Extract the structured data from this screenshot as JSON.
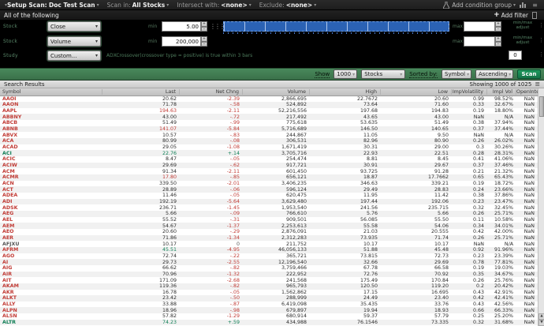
{
  "topbar": {
    "setup_label": "Setup Scan:",
    "setup_value": "Doc Test Scan",
    "scan_in_label": "Scan in:",
    "scan_in_value": "All Stocks",
    "intersect_label": "Intersect with:",
    "intersect_value": "<none>",
    "exclude_label": "Exclude:",
    "exclude_value": "<none>",
    "add_condition_group": "Add condition group",
    "all_of_label": "All of the following",
    "add_filter_plus": "+",
    "add_filter_label": "Add filter"
  },
  "filters": {
    "row1": {
      "tag": "Stock",
      "field": "Close",
      "min_label": "min",
      "min_value": "5.00",
      "max_label": "max",
      "max_value": "",
      "note_line1": "min/max",
      "note_line2": "adjust"
    },
    "row2": {
      "tag": "Stock",
      "field": "Volume",
      "min_label": "min",
      "min_value": "200,000",
      "max_label": "max",
      "max_value": "",
      "note_line1": "min/max",
      "note_line2": "adjust"
    },
    "row3": {
      "tag": "Study",
      "field": "Custom...",
      "description": "ADXCrossover(crossover type = positive) is true within 3 bars",
      "count_value": "0"
    }
  },
  "scan_toolbar": {
    "show_label": "Show",
    "show_value": "1000",
    "type_value": "Stocks",
    "sorted_by_label": "Sorted by:",
    "sort_field": "Symbol",
    "sort_direction": "Ascending",
    "scan_label": "Scan"
  },
  "results": {
    "title": "Search Results",
    "showing": "Showing 1000 of 1025",
    "columns": [
      "Symbol",
      "Last",
      "Net Chng",
      "Volume",
      "High",
      "Low",
      "ImpVolatility",
      "Impl Vol",
      "OpenInterest"
    ],
    "row_fields": [
      "symbol",
      "last",
      "net_chng",
      "volume",
      "high",
      "low",
      "imp_volatility",
      "impl_vol",
      "open_interest",
      "direction",
      "last_color_override"
    ],
    "rows": [
      [
        "AAOI",
        "20.62",
        "-2.39",
        "2,866,695",
        "22.7672",
        "20.60",
        "0.99",
        "98.52%",
        "NaN",
        "dn",
        ""
      ],
      [
        "AAON",
        "71.78",
        "-.58",
        "524,892",
        "73.64",
        "71.60",
        "0.33",
        "32.67%",
        "NaN",
        "dn",
        ""
      ],
      [
        "AAPL",
        "194.63",
        "-2.11",
        "52,216,556",
        "197.68",
        "194.83",
        "0.19",
        "18.80%",
        "NaN",
        "dn",
        "r"
      ],
      [
        "ABBNY",
        "43.00",
        "-.72",
        "217,492",
        "43.65",
        "43.00",
        "NaN",
        "N/A",
        "NaN",
        "dn",
        ""
      ],
      [
        "ABCB",
        "51.49",
        "-.99",
        "775,618",
        "53.635",
        "51.49",
        "0.38",
        "37.94%",
        "NaN",
        "dn",
        ""
      ],
      [
        "ABNB",
        "141.07",
        "-5.84",
        "5,716,689",
        "146.50",
        "140.65",
        "0.37",
        "37.44%",
        "NaN",
        "dn",
        "r"
      ],
      [
        "ABVX",
        "10.57",
        "-.83",
        "244,867",
        "11.05",
        "9.50",
        "NaN",
        "N/A",
        "NaN",
        "dn",
        ""
      ],
      [
        "ACA",
        "80.99",
        "-.08",
        "306,531",
        "82.96",
        "80.90",
        "0.26",
        "26.02%",
        "NaN",
        "dn",
        ""
      ],
      [
        "ACAD",
        "29.05",
        "-1.08",
        "1,671,419",
        "30.31",
        "29.00",
        "0.3",
        "30.26%",
        "NaN",
        "dn",
        ""
      ],
      [
        "ACI",
        "22.76",
        "+.14",
        "3,705,716",
        "22.93",
        "22.51",
        "0.28",
        "28.31%",
        "NaN",
        "up",
        ""
      ],
      [
        "ACIC",
        "8.47",
        "-.05",
        "254,474",
        "8.81",
        "8.45",
        "0.41",
        "41.06%",
        "NaN",
        "dn",
        ""
      ],
      [
        "ACIW",
        "29.69",
        "-.62",
        "917,721",
        "30.91",
        "29.67",
        "0.37",
        "37.46%",
        "NaN",
        "dn",
        ""
      ],
      [
        "ACM",
        "91.34",
        "-2.11",
        "601,450",
        "93.725",
        "91.28",
        "0.21",
        "21.32%",
        "NaN",
        "dn",
        ""
      ],
      [
        "ACMR",
        "17.80",
        "-.85",
        "656,121",
        "18.87",
        "17.7662",
        "0.65",
        "65.43%",
        "NaN",
        "dn",
        "r"
      ],
      [
        "ACN",
        "339.50",
        "-2.01",
        "3,406,235",
        "346.63",
        "339.21",
        "0.19",
        "18.72%",
        "NaN",
        "dn",
        ""
      ],
      [
        "ACT",
        "28.89",
        "-.06",
        "596,124",
        "29.49",
        "28.83",
        "0.24",
        "23.66%",
        "NaN",
        "dn",
        ""
      ],
      [
        "ADEA",
        "11.46",
        "-.05",
        "620,475",
        "11.95",
        "11.42",
        "0.38",
        "37.86%",
        "NaN",
        "dn",
        ""
      ],
      [
        "ADI",
        "192.19",
        "-5.64",
        "3,629,480",
        "197.44",
        "192.06",
        "0.23",
        "23.47%",
        "NaN",
        "dn",
        ""
      ],
      [
        "ADSK",
        "236.71",
        "-1.45",
        "1,953,540",
        "241.56",
        "235.715",
        "0.32",
        "32.45%",
        "NaN",
        "dn",
        ""
      ],
      [
        "AEG",
        "5.66",
        "-.09",
        "766,610",
        "5.76",
        "5.66",
        "0.26",
        "25.71%",
        "NaN",
        "dn",
        ""
      ],
      [
        "AEL",
        "55.52",
        "-.31",
        "909,501",
        "56.085",
        "55.50",
        "0.11",
        "10.58%",
        "NaN",
        "dn",
        ""
      ],
      [
        "AEM",
        "54.67",
        "-1.37",
        "2,253,613",
        "55.58",
        "54.06",
        "0.34",
        "34.01%",
        "NaN",
        "dn",
        ""
      ],
      [
        "AEO",
        "20.60",
        "-.29",
        "2,876,091",
        "21.03",
        "20.555",
        "0.42",
        "42.00%",
        "NaN",
        "dn",
        ""
      ],
      [
        "AER",
        "71.86",
        "-1.34",
        "2,312,283",
        "73.935",
        "71.74",
        "0.26",
        "25.71%",
        "NaN",
        "dn",
        ""
      ],
      [
        "AFJXU",
        "10.17",
        "0",
        "211,752",
        "10.17",
        "10.17",
        "NaN",
        "N/A",
        "NaN",
        "fl",
        ""
      ],
      [
        "AFRM",
        "45.51",
        "-4.95",
        "46,056,133",
        "51.88",
        "45.48",
        "0.92",
        "91.96%",
        "NaN",
        "dn",
        "g"
      ],
      [
        "AGO",
        "72.74",
        "-.22",
        "365,721",
        "73.815",
        "72.73",
        "0.23",
        "23.39%",
        "NaN",
        "dn",
        ""
      ],
      [
        "AI",
        "29.73",
        "-2.55",
        "12,196,540",
        "32.66",
        "29.69",
        "0.78",
        "77.81%",
        "NaN",
        "dn",
        ""
      ],
      [
        "AIG",
        "66.62",
        "-.82",
        "3,759,466",
        "67.78",
        "66.58",
        "0.19",
        "19.03%",
        "NaN",
        "dn",
        ""
      ],
      [
        "AIR",
        "70.96",
        "-1.32",
        "222,952",
        "72.76",
        "70.92",
        "0.35",
        "34.67%",
        "NaN",
        "dn",
        ""
      ],
      [
        "AIT",
        "171.09",
        "-2.68",
        "241,568",
        "175.49",
        "170.84",
        "0.26",
        "25.76%",
        "NaN",
        "dn",
        ""
      ],
      [
        "AKAM",
        "119.36",
        "-.82",
        "965,793",
        "120.50",
        "119.20",
        "0.2",
        "20.42%",
        "NaN",
        "dn",
        ""
      ],
      [
        "AKR",
        "16.78",
        "-.05",
        "1,562,862",
        "17.15",
        "16.695",
        "0.43",
        "42.91%",
        "NaN",
        "dn",
        ""
      ],
      [
        "ALKT",
        "23.42",
        "-.50",
        "288,999",
        "24.49",
        "23.40",
        "0.42",
        "42.41%",
        "NaN",
        "dn",
        ""
      ],
      [
        "ALLY",
        "33.88",
        "-.87",
        "6,419,098",
        "35.435",
        "33.76",
        "0.43",
        "42.56%",
        "NaN",
        "dn",
        ""
      ],
      [
        "ALPN",
        "18.96",
        "-.98",
        "679,897",
        "19.94",
        "18.93",
        "0.66",
        "66.33%",
        "NaN",
        "dn",
        ""
      ],
      [
        "ALSN",
        "57.82",
        "-1.29",
        "680,914",
        "59.37",
        "57.79",
        "0.25",
        "25.20%",
        "NaN",
        "dn",
        ""
      ],
      [
        "ALTR",
        "74.23",
        "+.59",
        "434,988",
        "76.1546",
        "73.335",
        "0.32",
        "31.68%",
        "NaN",
        "up",
        ""
      ]
    ]
  },
  "colors": {
    "negative_red": "#c13b35",
    "positive_green": "#0f7e55",
    "neutral_text": "#2c2c2c",
    "flat_symbol": "#555555",
    "accent_toolbar_green": "#3f7e52",
    "scan_button_green": "#188a54",
    "slider_blue": "#2b62b4"
  }
}
